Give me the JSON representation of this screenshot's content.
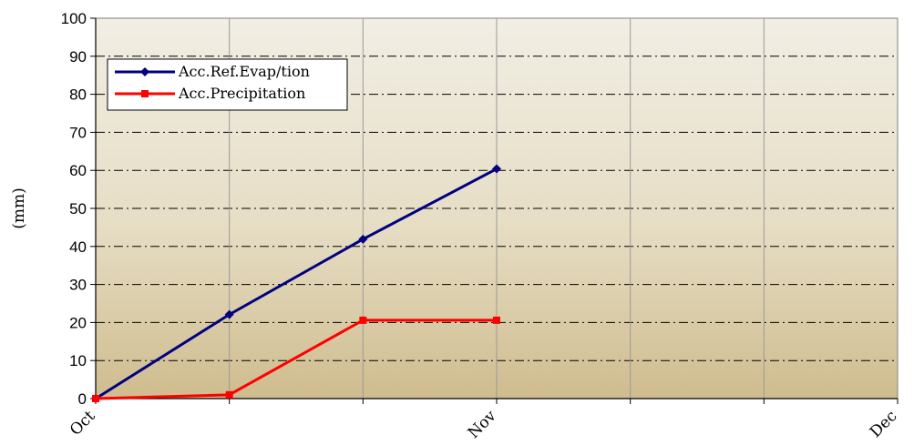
{
  "chart_data": {
    "type": "line",
    "title": "",
    "xlabel": "",
    "ylabel": "(mm)",
    "x_tick_labels": [
      "Oct",
      "Nov",
      "Dec"
    ],
    "x": [
      0,
      1,
      2,
      3
    ],
    "x_range": [
      0,
      6
    ],
    "ylim": [
      0,
      100
    ],
    "y_ticks": [
      "0",
      "10",
      "20",
      "30",
      "40",
      "50",
      "60",
      "70",
      "80",
      "90",
      "100"
    ],
    "grid": true,
    "legend_position": "top-left",
    "series": [
      {
        "name": "Acc.Ref.Evap/tion",
        "color": "#000080",
        "marker": "diamond",
        "values": [
          0,
          22.1,
          41.9,
          60.4
        ]
      },
      {
        "name": "Acc.Precipitation",
        "color": "#ff0000",
        "marker": "square",
        "values": [
          0,
          1.0,
          20.6,
          20.6
        ]
      }
    ]
  }
}
